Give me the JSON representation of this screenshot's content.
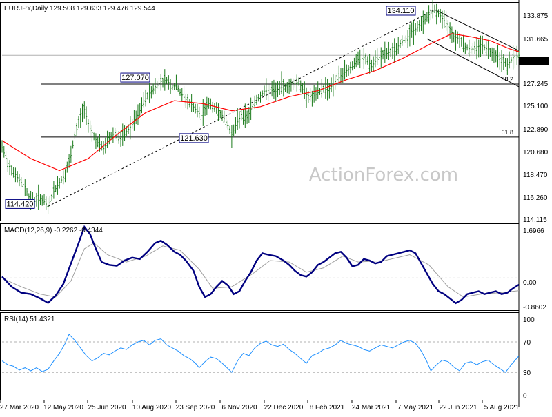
{
  "chart_data": [
    {
      "type": "candlestick",
      "title": "EURJPY,Daily  129.508 129.633 129.476 129.544",
      "last_price": "129.544",
      "y_ticks": [
        "133.875",
        "131.665",
        "129.544",
        "127.245",
        "125.100",
        "122.890",
        "120.680",
        "118.470",
        "116.260",
        "114.115"
      ],
      "y_values": [
        133.875,
        131.665,
        129.544,
        127.245,
        125.1,
        122.89,
        120.68,
        118.47,
        116.26,
        114.115
      ],
      "ylim": [
        114.115,
        133.875
      ],
      "x_ticks": [
        "27 Mar 2020",
        "12 May 2020",
        "25 Jun 2020",
        "10 Aug 2020",
        "23 Sep 2020",
        "6 Nov 2020",
        "22 Dec 2020",
        "8 Feb 2021",
        "24 Mar 2021",
        "7 May 2021",
        "22 Jun 2021",
        "5 Aug 2021"
      ],
      "annotations": [
        {
          "label": "114.420",
          "value": 114.42
        },
        {
          "label": "127.070",
          "value": 127.07
        },
        {
          "label": "121.630",
          "value": 121.63
        },
        {
          "label": "134.110",
          "value": 134.11
        }
      ],
      "fib_levels": [
        {
          "label": "38.2",
          "value": 126.5
        },
        {
          "label": "61.8",
          "value": 121.95
        }
      ],
      "moving_average_color": "#ff0000",
      "bar_color": "#1a7a1a",
      "price_path": [
        [
          0,
          120.3
        ],
        [
          6,
          118.7
        ],
        [
          12,
          117.9
        ],
        [
          18,
          117.0
        ],
        [
          24,
          116.4
        ],
        [
          29,
          115.1
        ],
        [
          34,
          114.9
        ],
        [
          38,
          115.3
        ],
        [
          43,
          115.0
        ],
        [
          48,
          114.42
        ],
        [
          54,
          115.9
        ],
        [
          60,
          116.8
        ],
        [
          66,
          117.6
        ],
        [
          72,
          119.5
        ],
        [
          76,
          121.5
        ],
        [
          82,
          123.4
        ],
        [
          86,
          124.1
        ],
        [
          90,
          122.7
        ],
        [
          95,
          121.6
        ],
        [
          100,
          120.8
        ],
        [
          106,
          120.2
        ],
        [
          112,
          121.3
        ],
        [
          118,
          121.8
        ],
        [
          124,
          121.1
        ],
        [
          130,
          121.9
        ],
        [
          136,
          122.6
        ],
        [
          142,
          123.5
        ],
        [
          148,
          125.0
        ],
        [
          154,
          125.7
        ],
        [
          160,
          126.4
        ],
        [
          166,
          126.9
        ],
        [
          172,
          127.07
        ],
        [
          178,
          126.3
        ],
        [
          182,
          126.6
        ],
        [
          186,
          125.8
        ],
        [
          192,
          125.1
        ],
        [
          198,
          124.6
        ],
        [
          204,
          123.9
        ],
        [
          208,
          123.5
        ],
        [
          212,
          124.2
        ],
        [
          216,
          124.7
        ],
        [
          222,
          124.3
        ],
        [
          228,
          123.8
        ],
        [
          232,
          123.2
        ],
        [
          236,
          122.5
        ],
        [
          240,
          121.63
        ],
        [
          245,
          122.7
        ],
        [
          250,
          123.6
        ],
        [
          256,
          123.3
        ],
        [
          262,
          124.6
        ],
        [
          268,
          125.3
        ],
        [
          274,
          125.9
        ],
        [
          280,
          126.1
        ],
        [
          286,
          125.9
        ],
        [
          292,
          126.5
        ],
        [
          298,
          126.3
        ],
        [
          304,
          126.7
        ],
        [
          310,
          126.9
        ],
        [
          314,
          126.1
        ],
        [
          318,
          125.6
        ],
        [
          324,
          125.3
        ],
        [
          330,
          125.8
        ],
        [
          336,
          126.3
        ],
        [
          342,
          126.2
        ],
        [
          348,
          126.9
        ],
        [
          354,
          127.5
        ],
        [
          360,
          128.0
        ],
        [
          366,
          128.5
        ],
        [
          372,
          129.1
        ],
        [
          378,
          129.3
        ],
        [
          382,
          129.0
        ],
        [
          386,
          128.4
        ],
        [
          392,
          129.2
        ],
        [
          398,
          129.6
        ],
        [
          404,
          129.8
        ],
        [
          410,
          130.0
        ],
        [
          416,
          130.7
        ],
        [
          422,
          131.2
        ],
        [
          428,
          131.9
        ],
        [
          434,
          132.3
        ],
        [
          440,
          132.9
        ],
        [
          446,
          133.6
        ],
        [
          452,
          134.11
        ],
        [
          458,
          133.5
        ],
        [
          462,
          133.0
        ],
        [
          468,
          132.2
        ],
        [
          472,
          131.4
        ],
        [
          478,
          131.2
        ],
        [
          484,
          130.4
        ],
        [
          490,
          130.1
        ],
        [
          496,
          130.3
        ],
        [
          500,
          130.6
        ],
        [
          506,
          130.2
        ],
        [
          512,
          129.8
        ],
        [
          518,
          129.4
        ],
        [
          522,
          129.1
        ],
        [
          528,
          128.6
        ],
        [
          534,
          129.3
        ],
        [
          540,
          129.544
        ]
      ],
      "ma_path": [
        [
          0,
          121.0
        ],
        [
          30,
          119.2
        ],
        [
          60,
          118.0
        ],
        [
          90,
          119.2
        ],
        [
          120,
          121.6
        ],
        [
          150,
          123.8
        ],
        [
          180,
          125.0
        ],
        [
          210,
          124.7
        ],
        [
          240,
          124.0
        ],
        [
          270,
          124.4
        ],
        [
          300,
          125.4
        ],
        [
          330,
          126.0
        ],
        [
          360,
          127.1
        ],
        [
          390,
          128.0
        ],
        [
          420,
          129.3
        ],
        [
          450,
          130.8
        ],
        [
          470,
          131.7
        ],
        [
          490,
          131.4
        ],
        [
          510,
          131.0
        ],
        [
          530,
          130.2
        ],
        [
          540,
          129.9
        ]
      ]
    },
    {
      "type": "line",
      "title": "MACD(12,26,9) -0.2262 -0.4344",
      "y_ticks": [
        "1.6966",
        "0.00",
        "-0.8602"
      ],
      "y_values": [
        1.6966,
        0.0,
        -0.8602
      ],
      "ylim": [
        -1.0,
        1.8
      ],
      "macd_color": "#000080",
      "signal_color": "#a0a0a0",
      "macd_path": [
        [
          0,
          0.05
        ],
        [
          10,
          -0.3
        ],
        [
          20,
          -0.5
        ],
        [
          30,
          -0.55
        ],
        [
          40,
          -0.7
        ],
        [
          48,
          -0.85
        ],
        [
          56,
          -0.6
        ],
        [
          64,
          -0.2
        ],
        [
          72,
          0.5
        ],
        [
          80,
          1.2
        ],
        [
          86,
          1.75
        ],
        [
          92,
          1.5
        ],
        [
          98,
          1.0
        ],
        [
          104,
          0.55
        ],
        [
          112,
          0.45
        ],
        [
          120,
          0.42
        ],
        [
          128,
          0.6
        ],
        [
          136,
          0.7
        ],
        [
          144,
          0.65
        ],
        [
          152,
          0.9
        ],
        [
          160,
          1.2
        ],
        [
          166,
          1.28
        ],
        [
          172,
          1.15
        ],
        [
          180,
          0.9
        ],
        [
          186,
          0.8
        ],
        [
          192,
          0.6
        ],
        [
          200,
          0.25
        ],
        [
          206,
          -0.3
        ],
        [
          212,
          -0.65
        ],
        [
          218,
          -0.55
        ],
        [
          224,
          -0.3
        ],
        [
          230,
          -0.1
        ],
        [
          236,
          -0.25
        ],
        [
          242,
          -0.55
        ],
        [
          248,
          -0.45
        ],
        [
          254,
          -0.1
        ],
        [
          260,
          0.2
        ],
        [
          266,
          0.6
        ],
        [
          272,
          0.85
        ],
        [
          278,
          0.8
        ],
        [
          286,
          0.75
        ],
        [
          294,
          0.6
        ],
        [
          300,
          0.45
        ],
        [
          306,
          0.25
        ],
        [
          312,
          0.1
        ],
        [
          318,
          0.05
        ],
        [
          324,
          0.2
        ],
        [
          330,
          0.45
        ],
        [
          336,
          0.55
        ],
        [
          342,
          0.7
        ],
        [
          348,
          0.85
        ],
        [
          354,
          0.9
        ],
        [
          360,
          0.7
        ],
        [
          366,
          0.4
        ],
        [
          372,
          0.45
        ],
        [
          378,
          0.65
        ],
        [
          384,
          0.6
        ],
        [
          390,
          0.5
        ],
        [
          396,
          0.55
        ],
        [
          402,
          0.75
        ],
        [
          408,
          0.8
        ],
        [
          414,
          0.85
        ],
        [
          420,
          0.9
        ],
        [
          426,
          0.95
        ],
        [
          432,
          0.85
        ],
        [
          438,
          0.5
        ],
        [
          444,
          0.15
        ],
        [
          450,
          -0.2
        ],
        [
          456,
          -0.45
        ],
        [
          462,
          -0.55
        ],
        [
          468,
          -0.7
        ],
        [
          474,
          -0.86
        ],
        [
          480,
          -0.75
        ],
        [
          486,
          -0.55
        ],
        [
          492,
          -0.5
        ],
        [
          498,
          -0.45
        ],
        [
          504,
          -0.55
        ],
        [
          510,
          -0.5
        ],
        [
          516,
          -0.45
        ],
        [
          522,
          -0.55
        ],
        [
          528,
          -0.5
        ],
        [
          534,
          -0.35
        ],
        [
          540,
          -0.2262
        ]
      ],
      "signal_path": [
        [
          0,
          0.0
        ],
        [
          20,
          -0.3
        ],
        [
          40,
          -0.55
        ],
        [
          56,
          -0.65
        ],
        [
          72,
          -0.1
        ],
        [
          86,
          1.0
        ],
        [
          96,
          1.2
        ],
        [
          110,
          0.8
        ],
        [
          130,
          0.55
        ],
        [
          150,
          0.75
        ],
        [
          168,
          1.1
        ],
        [
          186,
          0.95
        ],
        [
          206,
          0.3
        ],
        [
          220,
          -0.35
        ],
        [
          240,
          -0.3
        ],
        [
          262,
          0.15
        ],
        [
          280,
          0.6
        ],
        [
          300,
          0.55
        ],
        [
          318,
          0.2
        ],
        [
          336,
          0.35
        ],
        [
          356,
          0.75
        ],
        [
          372,
          0.55
        ],
        [
          400,
          0.6
        ],
        [
          426,
          0.8
        ],
        [
          446,
          0.45
        ],
        [
          466,
          -0.3
        ],
        [
          482,
          -0.65
        ],
        [
          500,
          -0.55
        ],
        [
          520,
          -0.5
        ],
        [
          540,
          -0.4344
        ]
      ]
    },
    {
      "type": "line",
      "title": "RSI(14) 51.4321",
      "y_ticks": [
        "100",
        "70",
        "30",
        "0"
      ],
      "y_values": [
        100,
        70,
        30,
        0
      ],
      "ylim": [
        0,
        100
      ],
      "rsi_color": "#1e90ff",
      "rsi_path": [
        [
          0,
          45
        ],
        [
          6,
          40
        ],
        [
          12,
          38
        ],
        [
          18,
          33
        ],
        [
          24,
          36
        ],
        [
          30,
          32
        ],
        [
          36,
          36
        ],
        [
          42,
          31
        ],
        [
          48,
          34
        ],
        [
          54,
          45
        ],
        [
          60,
          55
        ],
        [
          66,
          68
        ],
        [
          70,
          80
        ],
        [
          76,
          72
        ],
        [
          82,
          62
        ],
        [
          88,
          52
        ],
        [
          94,
          45
        ],
        [
          100,
          49
        ],
        [
          106,
          55
        ],
        [
          112,
          53
        ],
        [
          118,
          58
        ],
        [
          124,
          62
        ],
        [
          130,
          60
        ],
        [
          136,
          66
        ],
        [
          142,
          70
        ],
        [
          148,
          72
        ],
        [
          154,
          66
        ],
        [
          160,
          72
        ],
        [
          166,
          74
        ],
        [
          172,
          66
        ],
        [
          178,
          62
        ],
        [
          184,
          58
        ],
        [
          190,
          52
        ],
        [
          196,
          48
        ],
        [
          202,
          42
        ],
        [
          206,
          36
        ],
        [
          212,
          44
        ],
        [
          218,
          50
        ],
        [
          224,
          48
        ],
        [
          230,
          42
        ],
        [
          236,
          35
        ],
        [
          240,
          30
        ],
        [
          246,
          45
        ],
        [
          252,
          55
        ],
        [
          258,
          52
        ],
        [
          264,
          62
        ],
        [
          270,
          68
        ],
        [
          276,
          71
        ],
        [
          282,
          66
        ],
        [
          288,
          64
        ],
        [
          294,
          67
        ],
        [
          300,
          60
        ],
        [
          306,
          55
        ],
        [
          312,
          48
        ],
        [
          318,
          42
        ],
        [
          324,
          52
        ],
        [
          330,
          55
        ],
        [
          336,
          60
        ],
        [
          342,
          62
        ],
        [
          348,
          66
        ],
        [
          354,
          72
        ],
        [
          360,
          68
        ],
        [
          366,
          66
        ],
        [
          372,
          64
        ],
        [
          378,
          60
        ],
        [
          384,
          58
        ],
        [
          390,
          62
        ],
        [
          396,
          66
        ],
        [
          402,
          64
        ],
        [
          408,
          62
        ],
        [
          414,
          66
        ],
        [
          420,
          70
        ],
        [
          426,
          72
        ],
        [
          432,
          68
        ],
        [
          438,
          58
        ],
        [
          444,
          44
        ],
        [
          448,
          32
        ],
        [
          454,
          40
        ],
        [
          460,
          46
        ],
        [
          466,
          44
        ],
        [
          472,
          37
        ],
        [
          478,
          32
        ],
        [
          484,
          42
        ],
        [
          490,
          44
        ],
        [
          496,
          40
        ],
        [
          502,
          44
        ],
        [
          508,
          46
        ],
        [
          514,
          40
        ],
        [
          520,
          35
        ],
        [
          526,
          30
        ],
        [
          532,
          40
        ],
        [
          540,
          51.43
        ]
      ]
    }
  ],
  "watermark": "ActionForex.com"
}
